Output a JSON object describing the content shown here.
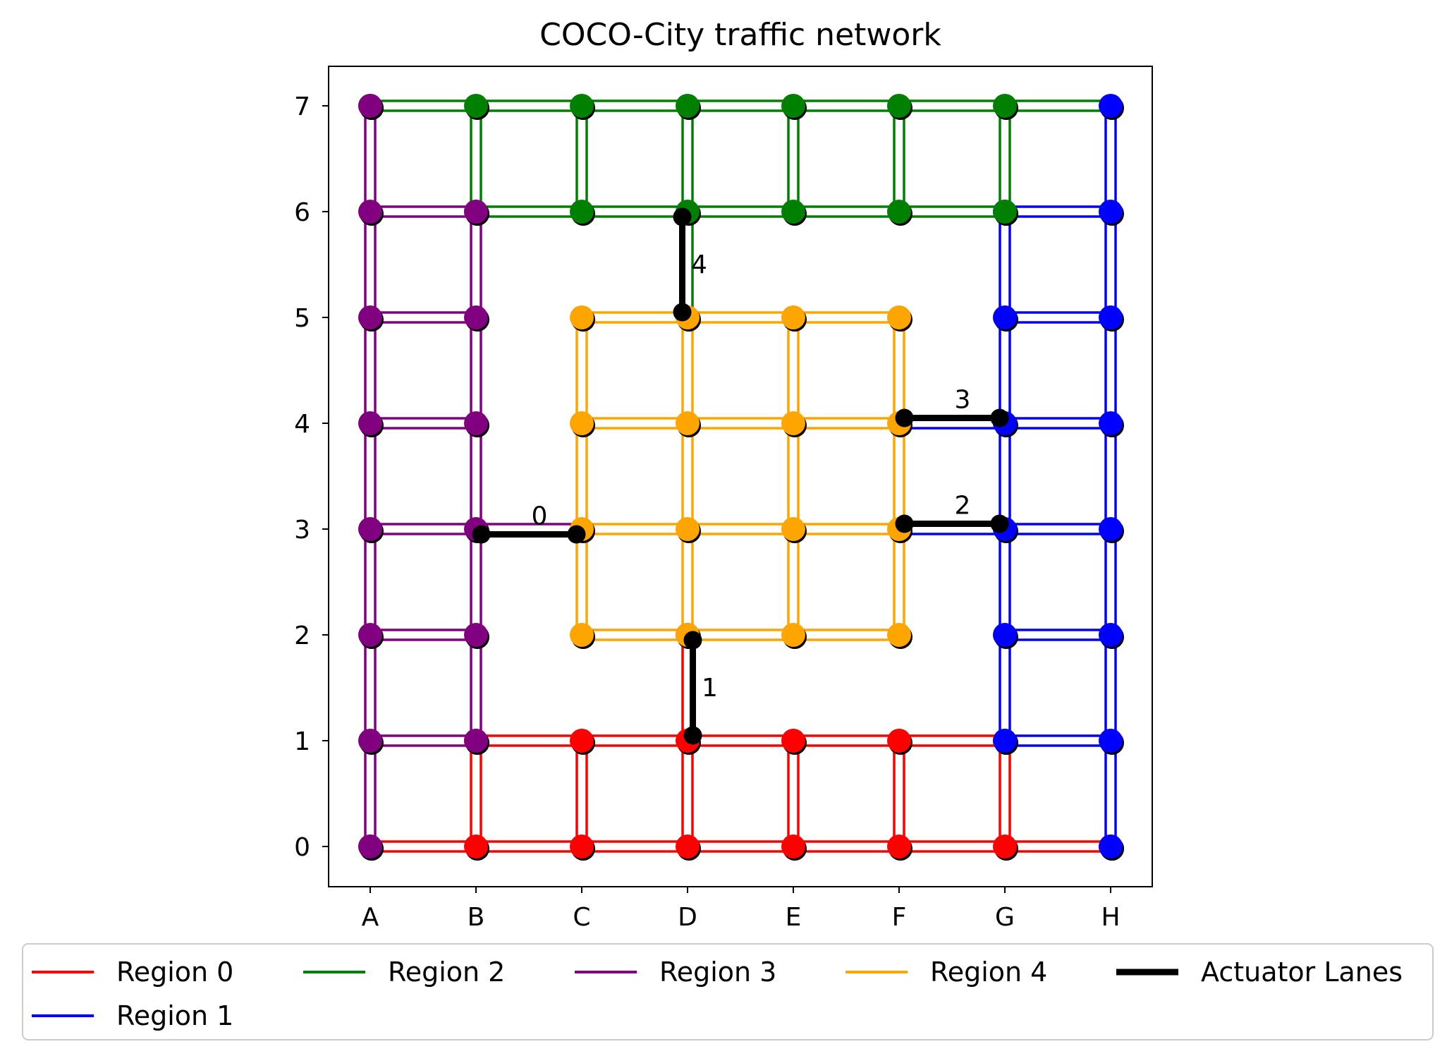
{
  "chart_data": {
    "type": "line",
    "title": "COCO-City traffic network",
    "xlabel": "",
    "ylabel": "",
    "x_ticks": [
      "A",
      "B",
      "C",
      "D",
      "E",
      "F",
      "G",
      "H"
    ],
    "y_ticks": [
      "0",
      "1",
      "2",
      "3",
      "4",
      "5",
      "6",
      "7"
    ],
    "xlim": [
      -0.35,
      7.4
    ],
    "ylim": [
      -0.38,
      7.37
    ],
    "grid": false,
    "legend_position": "bottom (outside axes), 5 columns",
    "series": [
      {
        "name": "Region 0",
        "color": "#ff0000",
        "nodes": [
          [
            0,
            0
          ],
          [
            1,
            0
          ],
          [
            2,
            0
          ],
          [
            3,
            0
          ],
          [
            4,
            0
          ],
          [
            5,
            0
          ],
          [
            6,
            0
          ],
          [
            7,
            0
          ],
          [
            1,
            1
          ],
          [
            2,
            1
          ],
          [
            3,
            1
          ],
          [
            4,
            1
          ],
          [
            5,
            1
          ],
          [
            6,
            1
          ],
          [
            3,
            2
          ]
        ],
        "edges": [
          [
            [
              0,
              0
            ],
            [
              7,
              0
            ]
          ],
          [
            [
              1,
              1
            ],
            [
              6,
              1
            ]
          ],
          [
            [
              1,
              0
            ],
            [
              1,
              1
            ]
          ],
          [
            [
              2,
              0
            ],
            [
              2,
              1
            ]
          ],
          [
            [
              3,
              0
            ],
            [
              3,
              1
            ]
          ],
          [
            [
              4,
              0
            ],
            [
              4,
              1
            ]
          ],
          [
            [
              5,
              0
            ],
            [
              5,
              1
            ]
          ],
          [
            [
              6,
              0
            ],
            [
              6,
              1
            ]
          ],
          [
            [
              3,
              1
            ],
            [
              3,
              2
            ]
          ]
        ]
      },
      {
        "name": "Region 1",
        "color": "#0000ff",
        "nodes": [
          [
            7,
            0
          ],
          [
            7,
            1
          ],
          [
            7,
            2
          ],
          [
            7,
            3
          ],
          [
            7,
            4
          ],
          [
            7,
            5
          ],
          [
            7,
            6
          ],
          [
            7,
            7
          ],
          [
            6,
            1
          ],
          [
            6,
            2
          ],
          [
            6,
            3
          ],
          [
            6,
            4
          ],
          [
            6,
            5
          ],
          [
            6,
            6
          ]
        ],
        "edges": [
          [
            [
              7,
              0
            ],
            [
              7,
              7
            ]
          ],
          [
            [
              6,
              1
            ],
            [
              6,
              6
            ]
          ],
          [
            [
              6,
              1
            ],
            [
              7,
              1
            ]
          ],
          [
            [
              6,
              2
            ],
            [
              7,
              2
            ]
          ],
          [
            [
              6,
              3
            ],
            [
              7,
              3
            ]
          ],
          [
            [
              6,
              4
            ],
            [
              7,
              4
            ]
          ],
          [
            [
              6,
              5
            ],
            [
              7,
              5
            ]
          ],
          [
            [
              6,
              6
            ],
            [
              7,
              6
            ]
          ],
          [
            [
              5,
              3
            ],
            [
              6,
              3
            ]
          ],
          [
            [
              5,
              4
            ],
            [
              6,
              4
            ]
          ]
        ]
      },
      {
        "name": "Region 2",
        "color": "#008000",
        "nodes": [
          [
            0,
            7
          ],
          [
            1,
            7
          ],
          [
            2,
            7
          ],
          [
            3,
            7
          ],
          [
            4,
            7
          ],
          [
            5,
            7
          ],
          [
            6,
            7
          ],
          [
            1,
            6
          ],
          [
            2,
            6
          ],
          [
            3,
            6
          ],
          [
            4,
            6
          ],
          [
            5,
            6
          ],
          [
            6,
            6
          ]
        ],
        "edges": [
          [
            [
              0,
              7
            ],
            [
              7,
              7
            ]
          ],
          [
            [
              1,
              6
            ],
            [
              6,
              6
            ]
          ],
          [
            [
              1,
              6
            ],
            [
              1,
              7
            ]
          ],
          [
            [
              2,
              6
            ],
            [
              2,
              7
            ]
          ],
          [
            [
              3,
              6
            ],
            [
              3,
              7
            ]
          ],
          [
            [
              4,
              6
            ],
            [
              4,
              7
            ]
          ],
          [
            [
              5,
              6
            ],
            [
              5,
              7
            ]
          ],
          [
            [
              6,
              6
            ],
            [
              6,
              7
            ]
          ],
          [
            [
              3,
              5
            ],
            [
              3,
              6
            ]
          ]
        ]
      },
      {
        "name": "Region 3",
        "color": "#800080",
        "nodes": [
          [
            0,
            1
          ],
          [
            0,
            2
          ],
          [
            0,
            3
          ],
          [
            0,
            4
          ],
          [
            0,
            5
          ],
          [
            0,
            6
          ],
          [
            0,
            7
          ],
          [
            1,
            2
          ],
          [
            1,
            3
          ],
          [
            1,
            4
          ],
          [
            1,
            5
          ],
          [
            1,
            6
          ],
          [
            1,
            1
          ],
          [
            0,
            0
          ]
        ],
        "edges": [
          [
            [
              0,
              0
            ],
            [
              0,
              7
            ]
          ],
          [
            [
              1,
              1
            ],
            [
              1,
              6
            ]
          ],
          [
            [
              0,
              1
            ],
            [
              1,
              1
            ]
          ],
          [
            [
              0,
              2
            ],
            [
              1,
              2
            ]
          ],
          [
            [
              0,
              3
            ],
            [
              1,
              3
            ]
          ],
          [
            [
              0,
              4
            ],
            [
              1,
              4
            ]
          ],
          [
            [
              0,
              5
            ],
            [
              1,
              5
            ]
          ],
          [
            [
              0,
              6
            ],
            [
              1,
              6
            ]
          ],
          [
            [
              1,
              3
            ],
            [
              2,
              3
            ]
          ]
        ]
      },
      {
        "name": "Region 4",
        "color": "#ffa500",
        "nodes": [
          [
            2,
            2
          ],
          [
            3,
            2
          ],
          [
            4,
            2
          ],
          [
            5,
            2
          ],
          [
            2,
            3
          ],
          [
            3,
            3
          ],
          [
            4,
            3
          ],
          [
            5,
            3
          ],
          [
            2,
            4
          ],
          [
            3,
            4
          ],
          [
            4,
            4
          ],
          [
            5,
            4
          ],
          [
            2,
            5
          ],
          [
            3,
            5
          ],
          [
            4,
            5
          ],
          [
            5,
            5
          ]
        ],
        "edges": [
          [
            [
              2,
              2
            ],
            [
              5,
              2
            ]
          ],
          [
            [
              2,
              3
            ],
            [
              5,
              3
            ]
          ],
          [
            [
              2,
              4
            ],
            [
              5,
              4
            ]
          ],
          [
            [
              2,
              5
            ],
            [
              5,
              5
            ]
          ],
          [
            [
              2,
              2
            ],
            [
              2,
              5
            ]
          ],
          [
            [
              3,
              2
            ],
            [
              3,
              5
            ]
          ],
          [
            [
              4,
              2
            ],
            [
              4,
              5
            ]
          ],
          [
            [
              5,
              2
            ],
            [
              5,
              5
            ]
          ]
        ]
      }
    ],
    "actuator_lanes": {
      "name": "Actuator Lanes",
      "color": "#000000",
      "lanes": [
        {
          "label": "0",
          "from": [
            1.05,
            2.95
          ],
          "to": [
            1.95,
            2.95
          ]
        },
        {
          "label": "1",
          "from": [
            3.05,
            1.05
          ],
          "to": [
            3.05,
            1.95
          ]
        },
        {
          "label": "2",
          "from": [
            5.05,
            3.05
          ],
          "to": [
            5.95,
            3.05
          ]
        },
        {
          "label": "3",
          "from": [
            5.05,
            4.05
          ],
          "to": [
            5.95,
            4.05
          ]
        },
        {
          "label": "4",
          "from": [
            2.95,
            5.05
          ],
          "to": [
            2.95,
            5.95
          ]
        }
      ]
    }
  }
}
